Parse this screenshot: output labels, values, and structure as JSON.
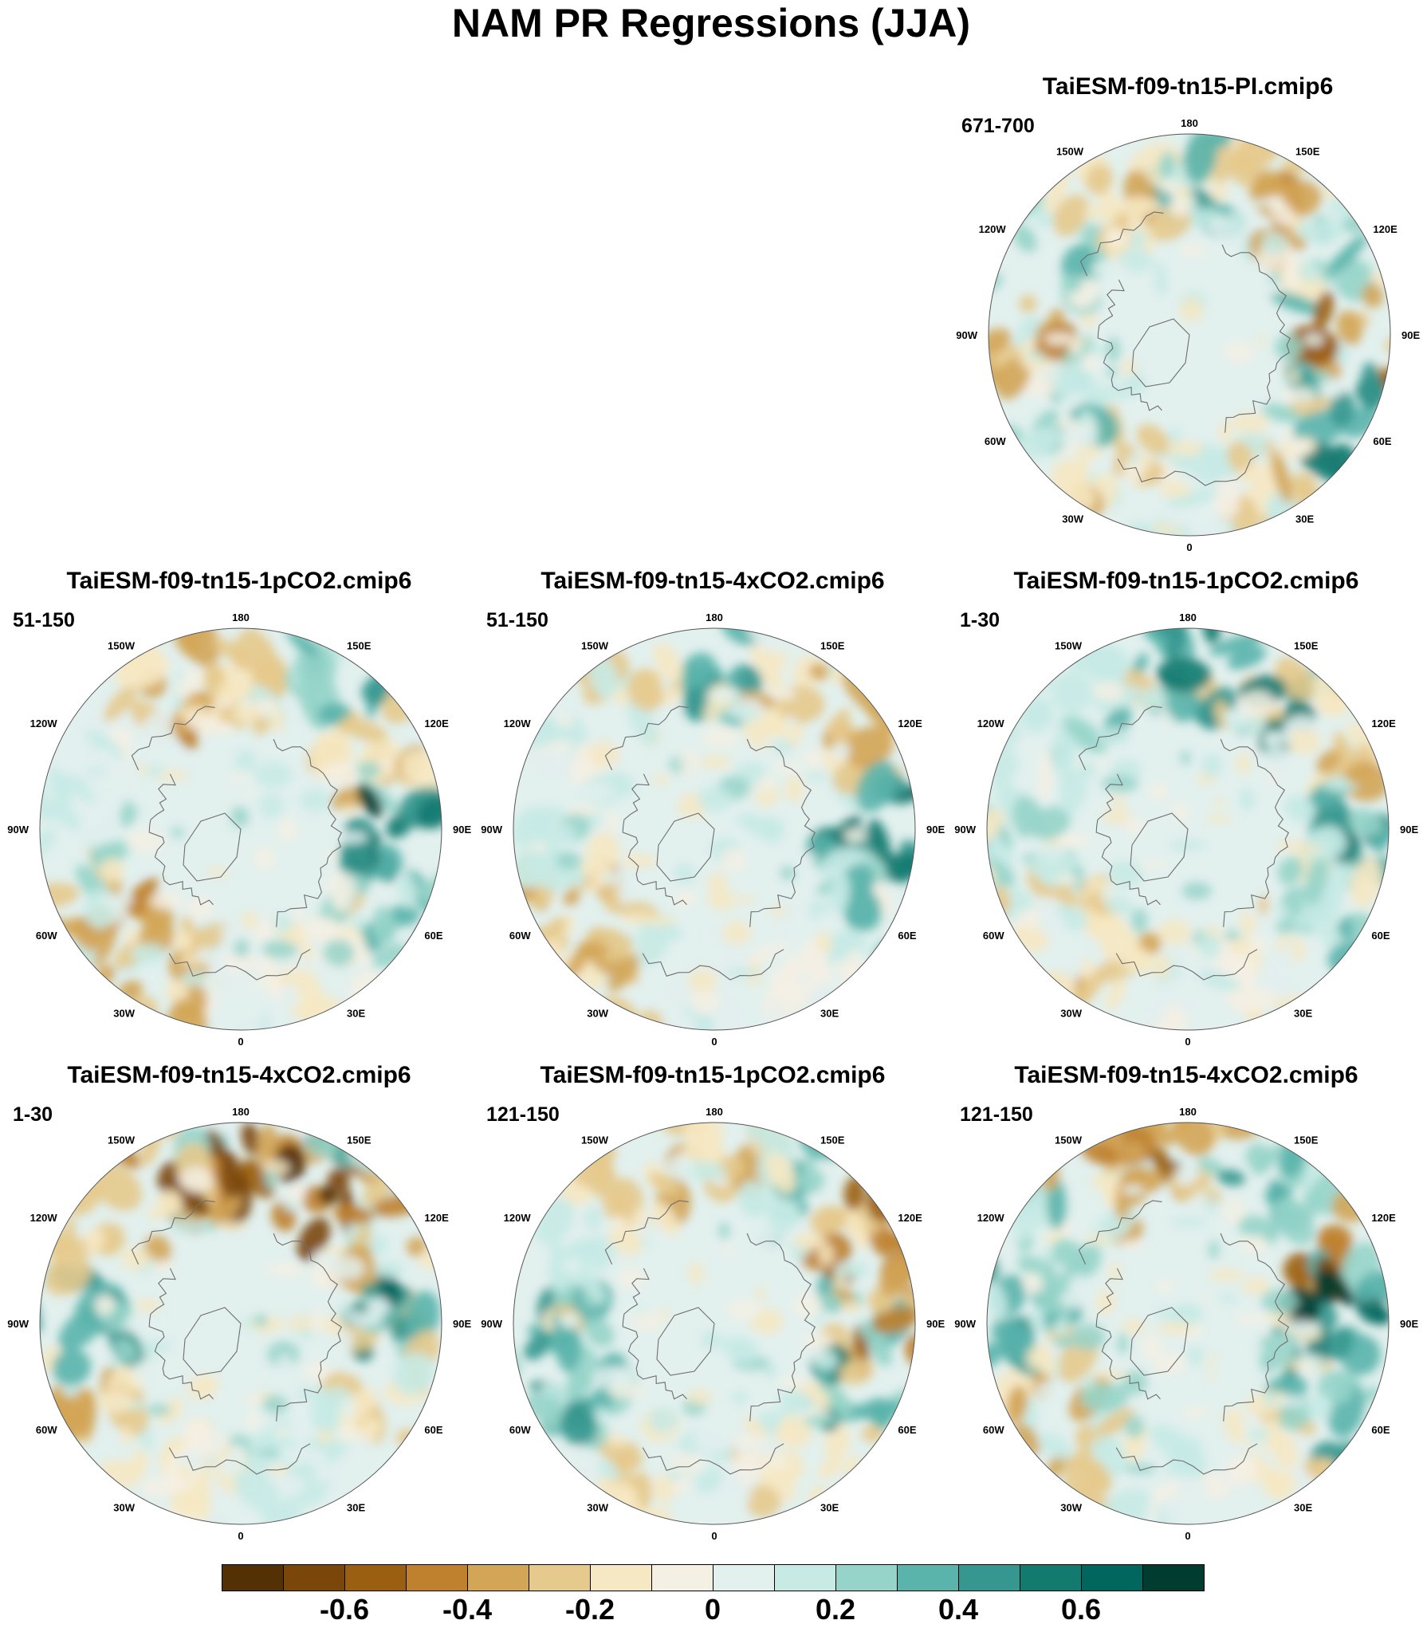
{
  "title": "NAM PR Regressions (JJA)",
  "lon_labels": [
    "180",
    "150E",
    "120E",
    "90E",
    "60E",
    "30E",
    "0",
    "30W",
    "60W",
    "90W",
    "120W",
    "150W"
  ],
  "panels": [
    {
      "title": "TaiESM-f09-tn15-PI.cmip6",
      "period": "671-700",
      "pattern": [
        0.45,
        -0.45,
        0.35,
        -0.55,
        0.6,
        -0.3,
        0.2,
        -0.35,
        0.3,
        -0.4,
        0.3,
        -0.3
      ]
    },
    {
      "title": "TaiESM-f09-tn15-1pCO2.cmip6",
      "period": "51-150",
      "pattern": [
        -0.35,
        0.4,
        -0.3,
        0.65,
        0.45,
        -0.15,
        0.1,
        -0.35,
        -0.4,
        0.2,
        0.1,
        -0.4
      ]
    },
    {
      "title": "TaiESM-f09-tn15-4xCO2.cmip6",
      "period": "51-150",
      "pattern": [
        0.4,
        -0.3,
        -0.35,
        0.55,
        0.3,
        -0.1,
        0.1,
        -0.3,
        -0.35,
        0.2,
        0.15,
        -0.3
      ]
    },
    {
      "title": "TaiESM-f09-tn15-1pCO2.cmip6",
      "period": "1-30",
      "pattern": [
        0.5,
        0.55,
        -0.3,
        0.5,
        0.3,
        -0.15,
        0.1,
        -0.3,
        -0.25,
        0.25,
        0.2,
        0.35
      ]
    },
    {
      "title": "TaiESM-f09-tn15-4xCO2.cmip6",
      "period": "1-30",
      "pattern": [
        -0.6,
        -0.7,
        -0.45,
        0.6,
        -0.3,
        0.15,
        0.2,
        -0.2,
        -0.35,
        0.45,
        -0.3,
        -0.55
      ]
    },
    {
      "title": "TaiESM-f09-tn15-1pCO2.cmip6",
      "period": "121-150",
      "pattern": [
        -0.35,
        0.35,
        -0.5,
        -0.55,
        0.5,
        -0.25,
        0.15,
        -0.3,
        0.4,
        0.45,
        0.2,
        -0.3
      ]
    },
    {
      "title": "TaiESM-f09-tn15-4xCO2.cmip6",
      "period": "121-150",
      "pattern": [
        -0.5,
        0.4,
        -0.6,
        0.7,
        0.45,
        -0.2,
        0.15,
        -0.3,
        -0.35,
        0.4,
        0.3,
        -0.4
      ]
    }
  ],
  "colorbar": {
    "colors": [
      "#543005",
      "#7a4609",
      "#9b5f12",
      "#bf812d",
      "#d3a557",
      "#e6c98c",
      "#f6e8c3",
      "#f5f0e4",
      "#e2f0ee",
      "#c7eae5",
      "#96d4c9",
      "#5ab4ac",
      "#35978f",
      "#137a70",
      "#01665e",
      "#003c30"
    ],
    "labels": [
      "-0.6",
      "-0.4",
      "-0.2",
      "0",
      "0.2",
      "0.4",
      "0.6"
    ],
    "label_values": [
      -0.6,
      -0.4,
      -0.2,
      0,
      0.2,
      0.4,
      0.6
    ],
    "min": -0.8,
    "max": 0.8
  }
}
